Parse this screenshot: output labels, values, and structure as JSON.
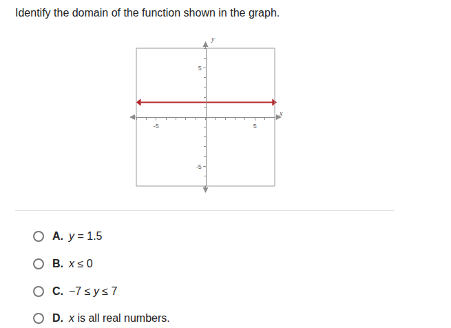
{
  "question": "Identify the domain of the function shown in the graph.",
  "chart_data": {
    "type": "line",
    "xlabel": "x",
    "ylabel": "y",
    "x": [
      -6.7,
      6.9
    ],
    "values": [
      1.5,
      1.5
    ],
    "color": "#b5272d",
    "marker": "arrow",
    "xlim": [
      -7,
      7
    ],
    "ylim": [
      -7,
      7
    ],
    "xticks": [
      -5,
      5
    ],
    "yticks": [
      -5,
      5
    ],
    "grid": false
  },
  "options": [
    {
      "letter": "A.",
      "text": "y = 1.5"
    },
    {
      "letter": "B.",
      "text": "x ≤ 0"
    },
    {
      "letter": "C.",
      "text": "−7 ≤ y ≤ 7"
    },
    {
      "letter": "D.",
      "text": "x is all real numbers."
    }
  ]
}
